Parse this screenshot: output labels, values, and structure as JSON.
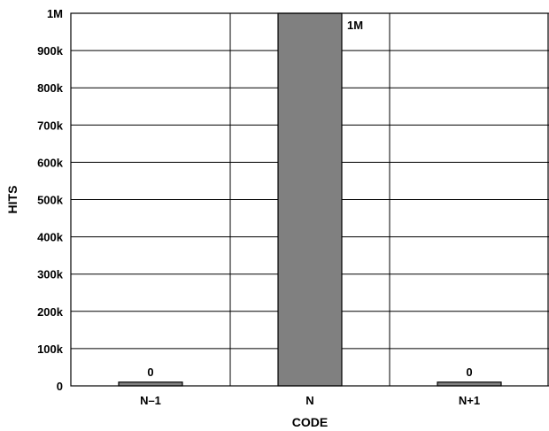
{
  "chart_data": {
    "type": "bar",
    "categories": [
      "N–1",
      "N",
      "N+1"
    ],
    "values": [
      10000,
      1000000,
      10000
    ],
    "data_labels": [
      "0",
      "1M",
      "0"
    ],
    "xlabel": "CODE",
    "ylabel": "HITS",
    "ylim": [
      0,
      1000000
    ],
    "yticks": [
      0,
      100000,
      200000,
      300000,
      400000,
      500000,
      600000,
      700000,
      800000,
      900000,
      1000000
    ],
    "ytick_labels": [
      "0",
      "100k",
      "200k",
      "300k",
      "400k",
      "500k",
      "600k",
      "700k",
      "800k",
      "900k",
      "1M"
    ],
    "grid": true,
    "bar_color": "#808080",
    "grid_color": "#000000"
  }
}
